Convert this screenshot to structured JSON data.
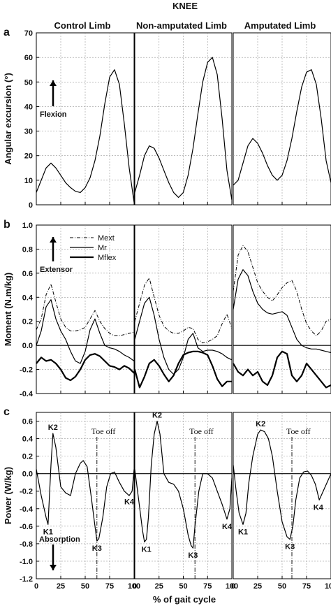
{
  "chart_data": {
    "type": "line",
    "title": "KNEE",
    "columns": [
      "Control Limb",
      "Non-amputated Limb",
      "Amputated Limb"
    ],
    "xlabel": "% of gait cycle",
    "xticks": [
      "0",
      "25",
      "50",
      "75",
      "100"
    ],
    "xlim": [
      0,
      100
    ],
    "panels": [
      {
        "id": "a",
        "ylabel": "Angular excursion (°)",
        "ylim": [
          0,
          70
        ],
        "yticks": [
          "0",
          "10",
          "20",
          "30",
          "40",
          "50",
          "60",
          "70"
        ],
        "annotations": {
          "arrow_label": "Flexion"
        },
        "series": [
          {
            "name": "",
            "style": "solid",
            "limb": 0,
            "x": [
              0,
              5,
              10,
              15,
              20,
              25,
              30,
              35,
              40,
              45,
              50,
              55,
              60,
              65,
              70,
              75,
              80,
              85,
              90,
              95,
              100
            ],
            "y": [
              5,
              10,
              15,
              17,
              15,
              12,
              9,
              7,
              5.5,
              5,
              7,
              11,
              18,
              28,
              41,
              52,
              55,
              49,
              33,
              15,
              1
            ]
          },
          {
            "name": "",
            "style": "solid",
            "limb": 1,
            "x": [
              0,
              5,
              10,
              15,
              20,
              25,
              30,
              35,
              40,
              45,
              50,
              55,
              60,
              65,
              70,
              75,
              80,
              85,
              90,
              95,
              100
            ],
            "y": [
              5,
              12,
              20,
              24,
              23,
              19,
              14,
              9,
              5,
              3,
              5,
              12,
              23,
              37,
              50,
              58,
              60,
              53,
              35,
              14,
              2
            ]
          },
          {
            "name": "",
            "style": "solid",
            "limb": 2,
            "x": [
              0,
              5,
              10,
              15,
              20,
              25,
              30,
              35,
              40,
              45,
              50,
              55,
              60,
              65,
              70,
              75,
              80,
              85,
              90,
              95,
              100
            ],
            "y": [
              8,
              10,
              17,
              24,
              27,
              25,
              21,
              16,
              12,
              10,
              12,
              18,
              27,
              38,
              48,
              54,
              55,
              49,
              35,
              18,
              9
            ]
          }
        ]
      },
      {
        "id": "b",
        "ylabel": "Moment (N.m/kg)",
        "ylim": [
          -0.4,
          1.0
        ],
        "yticks": [
          "-0.4",
          "-0.2",
          "0.0",
          "0.2",
          "0.4",
          "0.6",
          "0.8",
          "1.0"
        ],
        "annotations": {
          "arrow_label": "Extensor"
        },
        "legend": [
          "Mext",
          "Mr",
          "Mflex"
        ],
        "series": [
          {
            "name": "Mext",
            "style": "dashdot",
            "limb": 0,
            "x": [
              0,
              5,
              10,
              15,
              20,
              25,
              30,
              35,
              40,
              45,
              50,
              55,
              60,
              65,
              70,
              75,
              80,
              85,
              90,
              95,
              100
            ],
            "y": [
              0.13,
              0.22,
              0.42,
              0.51,
              0.36,
              0.22,
              0.15,
              0.12,
              0.12,
              0.13,
              0.15,
              0.22,
              0.29,
              0.2,
              0.14,
              0.1,
              0.08,
              0.08,
              0.09,
              0.1,
              0.11
            ]
          },
          {
            "name": "Mr",
            "style": "solid",
            "limb": 0,
            "x": [
              0,
              5,
              10,
              15,
              20,
              25,
              30,
              35,
              40,
              45,
              50,
              55,
              60,
              65,
              70,
              75,
              80,
              85,
              90,
              95,
              100
            ],
            "y": [
              0.0,
              0.12,
              0.32,
              0.38,
              0.22,
              0.12,
              0.05,
              -0.05,
              -0.13,
              -0.15,
              -0.05,
              0.13,
              0.22,
              0.1,
              0.0,
              -0.02,
              -0.03,
              -0.05,
              -0.08,
              -0.1,
              -0.13
            ]
          },
          {
            "name": "Mflex",
            "style": "thick",
            "limb": 0,
            "x": [
              0,
              5,
              10,
              15,
              20,
              25,
              30,
              35,
              40,
              45,
              50,
              55,
              60,
              65,
              70,
              75,
              80,
              85,
              90,
              95,
              100
            ],
            "y": [
              -0.15,
              -0.1,
              -0.13,
              -0.12,
              -0.15,
              -0.2,
              -0.27,
              -0.29,
              -0.26,
              -0.2,
              -0.12,
              -0.08,
              -0.07,
              -0.09,
              -0.13,
              -0.17,
              -0.18,
              -0.2,
              -0.17,
              -0.19,
              -0.23
            ]
          },
          {
            "name": "Mext",
            "style": "dashdot",
            "limb": 1,
            "x": [
              0,
              5,
              10,
              15,
              20,
              25,
              30,
              35,
              40,
              45,
              50,
              55,
              60,
              65,
              70,
              75,
              80,
              85,
              90,
              95,
              100
            ],
            "y": [
              0.2,
              0.35,
              0.5,
              0.56,
              0.4,
              0.25,
              0.16,
              0.12,
              0.1,
              0.1,
              0.12,
              0.15,
              0.14,
              0.05,
              0.02,
              0.03,
              0.05,
              0.08,
              0.18,
              0.26,
              0.14
            ]
          },
          {
            "name": "Mr",
            "style": "solid",
            "limb": 1,
            "x": [
              0,
              5,
              10,
              15,
              20,
              25,
              30,
              35,
              40,
              45,
              50,
              55,
              60,
              65,
              70,
              75,
              80,
              85,
              90,
              95,
              100
            ],
            "y": [
              0.05,
              0.2,
              0.35,
              0.4,
              0.25,
              0.05,
              -0.1,
              -0.2,
              -0.24,
              -0.2,
              -0.1,
              0.05,
              0.1,
              -0.02,
              -0.05,
              -0.04,
              -0.04,
              -0.05,
              -0.07,
              -0.1,
              -0.12
            ]
          },
          {
            "name": "Mflex",
            "style": "thick",
            "limb": 1,
            "x": [
              0,
              5,
              10,
              15,
              20,
              25,
              30,
              35,
              40,
              45,
              50,
              55,
              60,
              65,
              70,
              75,
              80,
              85,
              90,
              95,
              100
            ],
            "y": [
              -0.2,
              -0.35,
              -0.26,
              -0.15,
              -0.12,
              -0.17,
              -0.24,
              -0.3,
              -0.25,
              -0.15,
              -0.08,
              -0.06,
              -0.05,
              -0.05,
              -0.06,
              -0.08,
              -0.17,
              -0.28,
              -0.34,
              -0.3,
              -0.3
            ]
          },
          {
            "name": "Mext",
            "style": "dashdot",
            "limb": 2,
            "x": [
              0,
              5,
              10,
              15,
              20,
              25,
              30,
              35,
              40,
              45,
              50,
              55,
              60,
              65,
              70,
              75,
              80,
              85,
              90,
              95,
              100
            ],
            "y": [
              0.45,
              0.75,
              0.83,
              0.78,
              0.65,
              0.52,
              0.45,
              0.4,
              0.37,
              0.42,
              0.48,
              0.52,
              0.54,
              0.45,
              0.3,
              0.18,
              0.12,
              0.08,
              0.12,
              0.2,
              0.22
            ]
          },
          {
            "name": "Mr",
            "style": "solid",
            "limb": 2,
            "x": [
              0,
              5,
              10,
              15,
              20,
              25,
              30,
              35,
              40,
              45,
              50,
              55,
              60,
              65,
              70,
              75,
              80,
              85,
              90,
              95,
              100
            ],
            "y": [
              0.3,
              0.55,
              0.63,
              0.58,
              0.45,
              0.35,
              0.3,
              0.27,
              0.26,
              0.27,
              0.28,
              0.25,
              0.15,
              0.05,
              0.0,
              -0.02,
              -0.03,
              -0.03,
              -0.04,
              -0.05,
              -0.06
            ]
          },
          {
            "name": "Mflex",
            "style": "thick",
            "limb": 2,
            "x": [
              0,
              5,
              10,
              15,
              20,
              25,
              30,
              35,
              40,
              45,
              50,
              55,
              60,
              65,
              70,
              75,
              80,
              85,
              90,
              95,
              100
            ],
            "y": [
              -0.15,
              -0.22,
              -0.25,
              -0.2,
              -0.25,
              -0.22,
              -0.3,
              -0.33,
              -0.25,
              -0.1,
              -0.05,
              -0.07,
              -0.25,
              -0.3,
              -0.25,
              -0.15,
              -0.2,
              -0.25,
              -0.3,
              -0.35,
              -0.33
            ]
          }
        ]
      },
      {
        "id": "c",
        "ylabel": "Power (W/kg)",
        "ylim": [
          -1.2,
          0.7
        ],
        "yticks": [
          "-1.2",
          "-1.0",
          "-0.8",
          "-0.6",
          "-0.4",
          "-0.2",
          "0.0",
          "0.2",
          "0.4",
          "0.6"
        ],
        "annotations": {
          "arrow_label": "Absorption",
          "toe_off": "Toe off",
          "toe_off_x": [
            62,
            62,
            60
          ]
        },
        "labels": [
          [
            {
              "text": "K1",
              "x": 12,
              "y": -0.58
            },
            {
              "text": "K2",
              "x": 17,
              "y": 0.46
            },
            {
              "text": "K3",
              "x": 62,
              "y": -0.77
            },
            {
              "text": "K4",
              "x": 95,
              "y": -0.24
            }
          ],
          [
            {
              "text": "K1",
              "x": 12,
              "y": -0.78
            },
            {
              "text": "K2",
              "x": 23,
              "y": 0.6
            },
            {
              "text": "K3",
              "x": 60,
              "y": -0.85
            },
            {
              "text": "K4",
              "x": 95,
              "y": -0.52
            }
          ],
          [
            {
              "text": "K1",
              "x": 10,
              "y": -0.58
            },
            {
              "text": "K2",
              "x": 28,
              "y": 0.5
            },
            {
              "text": "K3",
              "x": 58,
              "y": -0.75
            },
            {
              "text": "K4",
              "x": 87,
              "y": -0.3
            }
          ]
        ],
        "series": [
          {
            "name": "",
            "style": "solid",
            "limb": 0,
            "x": [
              0,
              5,
              10,
              12,
              15,
              17,
              20,
              25,
              30,
              35,
              40,
              45,
              48,
              52,
              56,
              60,
              62,
              64,
              68,
              72,
              76,
              80,
              85,
              90,
              95,
              98,
              100
            ],
            "y": [
              0.05,
              -0.25,
              -0.5,
              -0.58,
              0.1,
              0.46,
              0.3,
              -0.15,
              -0.22,
              -0.25,
              0.0,
              0.12,
              0.15,
              0.08,
              -0.25,
              -0.6,
              -0.77,
              -0.74,
              -0.5,
              -0.15,
              0.0,
              0.02,
              -0.1,
              -0.2,
              -0.25,
              -0.2,
              0.05
            ]
          },
          {
            "name": "",
            "style": "solid",
            "limb": 1,
            "x": [
              0,
              4,
              8,
              10,
              12,
              14,
              17,
              20,
              23,
              26,
              30,
              35,
              40,
              45,
              50,
              55,
              58,
              60,
              62,
              66,
              70,
              75,
              80,
              85,
              90,
              95,
              98,
              100
            ],
            "y": [
              0.05,
              -0.3,
              -0.65,
              -0.78,
              -0.75,
              -0.5,
              0.1,
              0.45,
              0.6,
              0.45,
              0.0,
              -0.1,
              -0.12,
              -0.2,
              -0.4,
              -0.7,
              -0.82,
              -0.85,
              -0.6,
              -0.2,
              0.0,
              0.0,
              -0.05,
              -0.2,
              -0.35,
              -0.52,
              -0.4,
              -0.05
            ]
          },
          {
            "name": "",
            "style": "solid",
            "limb": 2,
            "x": [
              0,
              3,
              6,
              10,
              13,
              16,
              20,
              25,
              28,
              32,
              36,
              40,
              45,
              50,
              55,
              58,
              61,
              64,
              68,
              72,
              76,
              80,
              84,
              88,
              92,
              96,
              100
            ],
            "y": [
              0.1,
              -0.2,
              -0.45,
              -0.58,
              -0.45,
              -0.1,
              0.2,
              0.45,
              0.5,
              0.48,
              0.4,
              0.2,
              -0.2,
              -0.55,
              -0.72,
              -0.75,
              -0.6,
              -0.3,
              -0.05,
              0.02,
              0.03,
              -0.02,
              -0.12,
              -0.3,
              -0.2,
              -0.1,
              0.0
            ]
          }
        ]
      }
    ]
  }
}
